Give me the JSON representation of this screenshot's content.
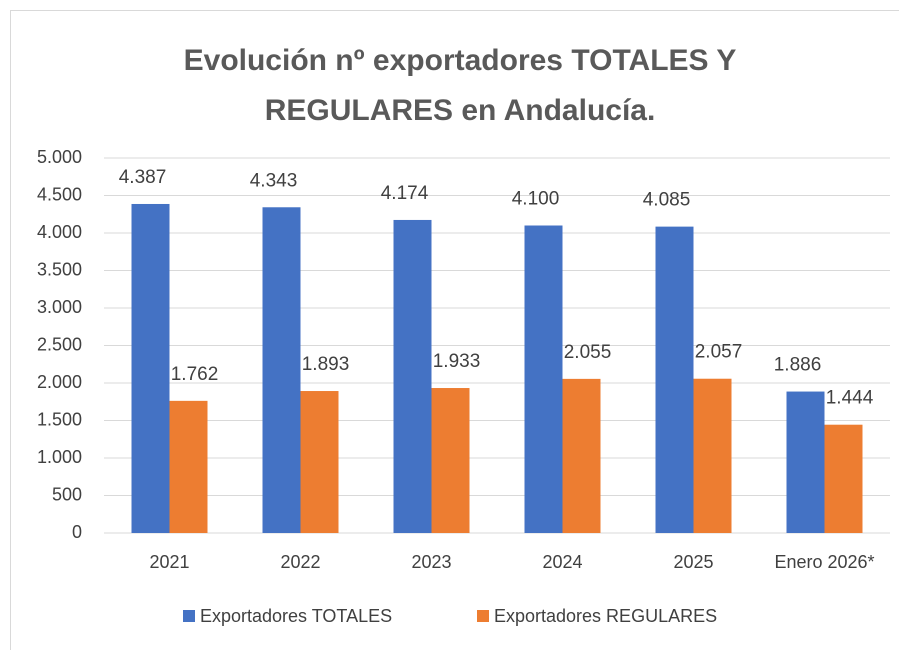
{
  "chart_data": {
    "type": "bar",
    "title": "Evolución nº exportadores TOTALES Y REGULARES en Andalucía.",
    "categories": [
      "2021",
      "2022",
      "2023",
      "2024",
      "2025",
      "Enero 2026*"
    ],
    "series": [
      {
        "name": "Exportadores TOTALES",
        "color": "#4472c4",
        "values": [
          4387,
          4343,
          4174,
          4100,
          4085,
          1886
        ],
        "value_labels": [
          "4.387",
          "4.343",
          "4.174",
          "4.100",
          "4.085",
          "1.886"
        ]
      },
      {
        "name": "Exportadores REGULARES",
        "color": "#ed7d31",
        "values": [
          1762,
          1893,
          1933,
          2055,
          2057,
          1444
        ],
        "value_labels": [
          "1.762",
          "1.893",
          "1.933",
          "2.055",
          "2.057",
          "1.444"
        ]
      }
    ],
    "ylim": [
      0,
      5000
    ],
    "yticks": [
      0,
      500,
      {
        "value": 1000,
        "label": "1.000"
      },
      {
        "value": 1500,
        "label": "1.500"
      },
      {
        "value": 2000,
        "label": "2.000"
      },
      {
        "value": 2500,
        "label": "2.500"
      },
      {
        "value": 3000,
        "label": "3.000"
      },
      {
        "value": 3500,
        "label": "3.500"
      },
      {
        "value": 4000,
        "label": "4.000"
      },
      {
        "value": 4500,
        "label": "4.500"
      },
      {
        "value": 5000,
        "label": "5.000"
      }
    ],
    "grid": true,
    "legend": "bottom"
  }
}
